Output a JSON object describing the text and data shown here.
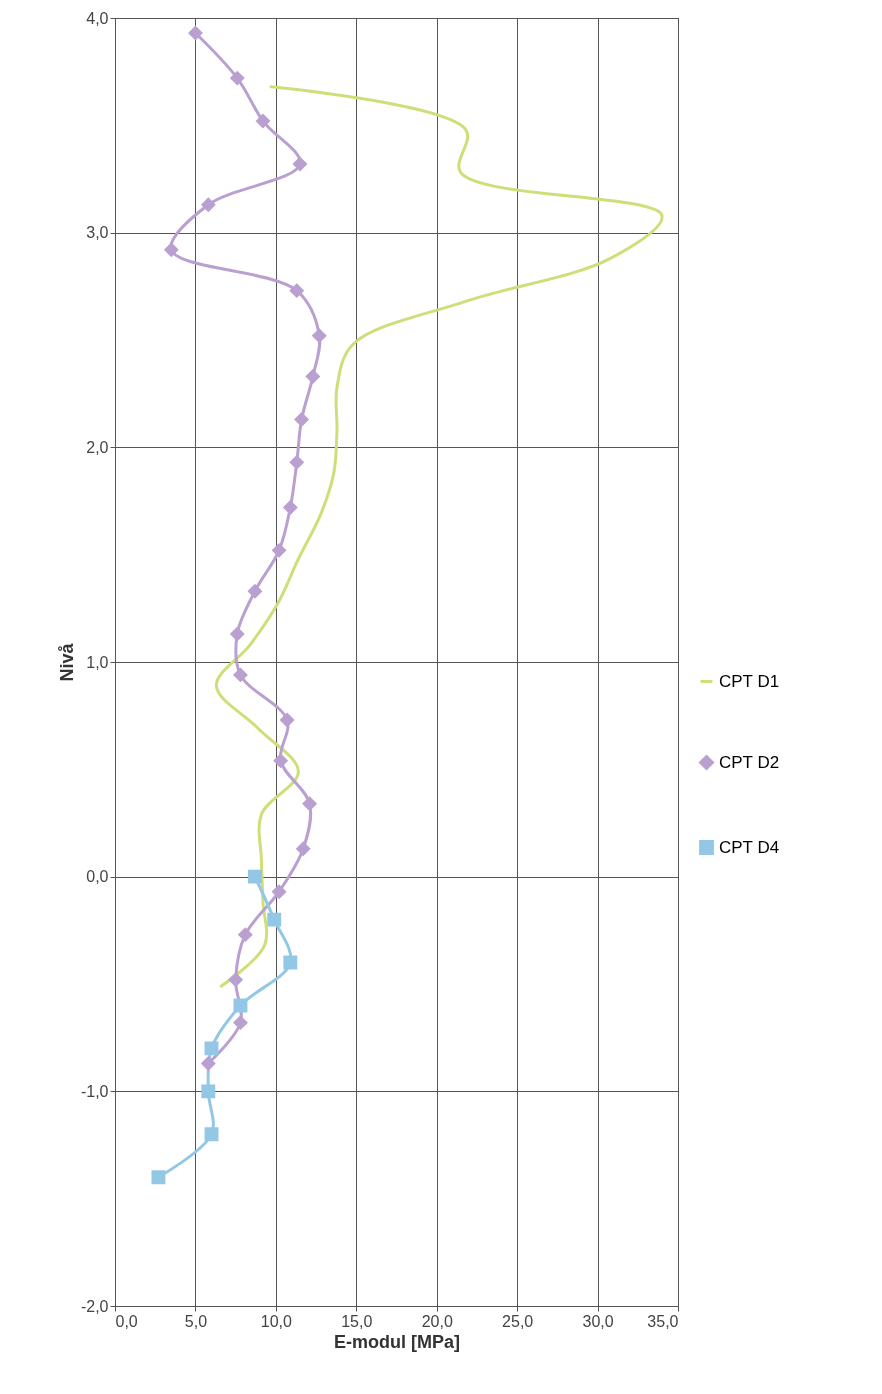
{
  "chart_data": {
    "type": "line",
    "xlabel": "E-modul [MPa]",
    "ylabel": "Nivå",
    "xlim": [
      0,
      35
    ],
    "ylim": [
      -2,
      4
    ],
    "xticks": [
      {
        "value": 0,
        "label": "0,0"
      },
      {
        "value": 5,
        "label": "5,0"
      },
      {
        "value": 10,
        "label": "10,0"
      },
      {
        "value": 15,
        "label": "15,0"
      },
      {
        "value": 20,
        "label": "20,0"
      },
      {
        "value": 25,
        "label": "25,0"
      },
      {
        "value": 30,
        "label": "30,0"
      },
      {
        "value": 35,
        "label": "35,0"
      }
    ],
    "yticks": [
      {
        "value": -2,
        "label": "-2,0"
      },
      {
        "value": -1,
        "label": "-1,0"
      },
      {
        "value": 0,
        "label": "0,0"
      },
      {
        "value": 1,
        "label": "1,0"
      },
      {
        "value": 2,
        "label": "2,0"
      },
      {
        "value": 3,
        "label": "3,0"
      },
      {
        "value": 4,
        "label": "4,0"
      }
    ],
    "grid": true,
    "legend": "right",
    "series": [
      {
        "name": "CPT D1",
        "color": "#cddf78",
        "marker": "none",
        "x": [
          9.7,
          21.8,
          21.5,
          34.0,
          30.8,
          21.8,
          14.8,
          13.8,
          13.8,
          13.6,
          12.8,
          11.4,
          10.1,
          8.4,
          6.3,
          8.9,
          11.4,
          9.1,
          9.1,
          9.2,
          9.3,
          6.6
        ],
        "values": [
          3.68,
          3.48,
          3.28,
          3.08,
          2.88,
          2.68,
          2.48,
          2.28,
          2.08,
          1.88,
          1.69,
          1.48,
          1.27,
          1.08,
          0.89,
          0.69,
          0.49,
          0.29,
          0.08,
          -0.12,
          -0.32,
          -0.51
        ]
      },
      {
        "name": "CPT D2",
        "color": "#b9a0d0",
        "marker": "diamond",
        "x": [
          5.0,
          7.6,
          9.2,
          11.5,
          5.8,
          3.5,
          11.3,
          12.7,
          12.3,
          11.6,
          11.3,
          10.9,
          10.2,
          8.7,
          7.6,
          7.8,
          10.7,
          10.3,
          12.1,
          11.7,
          10.2,
          8.1,
          7.5,
          7.8,
          5.8
        ],
        "values": [
          3.93,
          3.72,
          3.52,
          3.32,
          3.13,
          2.92,
          2.73,
          2.52,
          2.33,
          2.13,
          1.93,
          1.72,
          1.52,
          1.33,
          1.13,
          0.94,
          0.73,
          0.54,
          0.34,
          0.13,
          -0.07,
          -0.27,
          -0.48,
          -0.68,
          -0.87
        ]
      },
      {
        "name": "CPT D4",
        "color": "#92c8e6",
        "marker": "square",
        "x": [
          8.7,
          9.9,
          10.9,
          7.8,
          6.0,
          5.8,
          6.0,
          2.7
        ],
        "values": [
          0.0,
          -0.2,
          -0.4,
          -0.6,
          -0.8,
          -1.0,
          -1.2,
          -1.4
        ]
      }
    ]
  }
}
